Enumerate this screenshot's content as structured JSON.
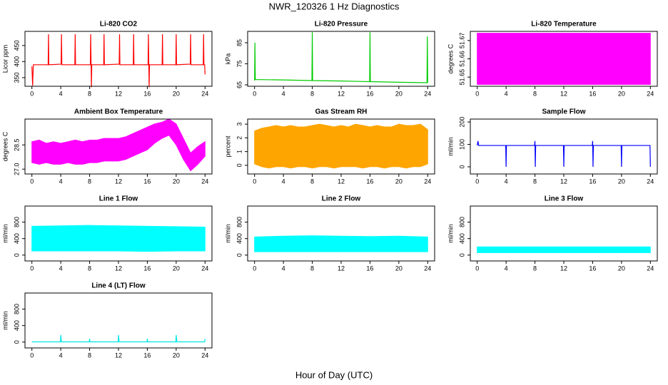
{
  "title": "NWR_120326  1 Hz Diagnostics",
  "xlabel": "Hour of Day (UTC)",
  "chart_data": [
    {
      "type": "line",
      "title": "Li-820 CO2",
      "ylabel": "Licor ppm",
      "color": "#ff0000",
      "x": [
        0,
        0.1,
        0.2,
        2.25,
        2.3,
        2.35,
        4.05,
        4.1,
        4.15,
        5.95,
        6.0,
        6.05,
        8.1,
        8.15,
        8.25,
        8.3,
        9.95,
        10,
        10.05,
        12.1,
        12.15,
        12.2,
        14.05,
        14.1,
        14.15,
        16.1,
        16.15,
        16.25,
        16.3,
        18.05,
        18.1,
        18.15,
        19.95,
        20,
        20.05,
        21.95,
        22,
        22.05,
        23.75,
        23.8,
        23.85,
        23.95,
        24
      ],
      "values": [
        385,
        325,
        390,
        390,
        485,
        390,
        392,
        485,
        390,
        390,
        485,
        390,
        390,
        485,
        320,
        390,
        390,
        485,
        390,
        392,
        485,
        390,
        390,
        485,
        390,
        390,
        485,
        320,
        390,
        390,
        485,
        390,
        390,
        485,
        390,
        392,
        485,
        390,
        390,
        485,
        390,
        390,
        360
      ],
      "xlim": [
        -0.96,
        24.96
      ],
      "xticks": [
        0,
        4,
        8,
        12,
        16,
        20,
        24
      ],
      "ylim": [
        323,
        494
      ],
      "yticks": [
        350,
        400,
        450
      ]
    },
    {
      "type": "line",
      "title": "Li-820 Pressure",
      "ylabel": "kPa",
      "color": "#00cc00",
      "x": [
        0,
        0.05,
        0.1,
        4,
        7.95,
        8,
        8.05,
        12,
        15.95,
        16,
        16.05,
        20,
        23.9,
        23.95,
        24
      ],
      "values": [
        67,
        85,
        67.5,
        67.3,
        67,
        90,
        67,
        66.8,
        66.5,
        90,
        66.5,
        66.2,
        66,
        88,
        66
      ],
      "xlim": [
        -0.96,
        24.96
      ],
      "xticks": [
        0,
        4,
        8,
        12,
        16,
        20,
        24
      ],
      "ylim": [
        64.3,
        90.4
      ],
      "yticks": [
        65,
        75,
        85
      ]
    },
    {
      "type": "band",
      "title": "Li-820 Temperature",
      "ylabel": "degrees C",
      "color": "#ff00ff",
      "x": [
        0,
        24
      ],
      "low": [
        51.646,
        51.646
      ],
      "high": [
        51.674,
        51.674
      ],
      "xlim": [
        -0.96,
        24.96
      ],
      "xticks": [
        0,
        4,
        8,
        12,
        16,
        20,
        24
      ],
      "ylim": [
        51.645,
        51.675
      ],
      "yticks": [
        51.65,
        51.66,
        51.67
      ]
    },
    {
      "type": "band",
      "title": "Ambient Box Temperature",
      "ylabel": "degrees C",
      "color": "#ff00ff",
      "x": [
        0,
        1,
        2,
        3,
        4,
        5,
        6,
        7,
        8,
        9,
        10,
        11,
        12,
        13,
        14,
        15,
        16,
        17,
        18,
        19,
        20,
        21,
        22,
        23,
        24
      ],
      "low": [
        27.4,
        27.3,
        27.4,
        27.3,
        27.3,
        27.4,
        27.3,
        27.3,
        27.4,
        27.4,
        27.5,
        27.5,
        27.5,
        27.6,
        27.8,
        28.0,
        28.2,
        28.6,
        28.9,
        29.1,
        28.5,
        27.6,
        26.9,
        27.3,
        27.8
      ],
      "high": [
        28.7,
        28.8,
        28.6,
        28.7,
        28.6,
        28.7,
        28.8,
        28.7,
        28.8,
        28.8,
        28.9,
        28.9,
        28.9,
        29.0,
        29.2,
        29.4,
        29.6,
        29.8,
        29.9,
        30.1,
        29.8,
        28.9,
        28.0,
        28.4,
        28.7
      ],
      "xlim": [
        -0.96,
        24.96
      ],
      "xticks": [
        0,
        4,
        8,
        12,
        16,
        20,
        24
      ],
      "ylim": [
        26.7,
        30.1
      ],
      "yticks": [
        {
          "value": 27,
          "label": "27.0"
        },
        {
          "value": 28.5,
          "label": "28.5"
        }
      ]
    },
    {
      "type": "band",
      "title": "Gas Stream RH",
      "ylabel": "percent",
      "color": "#ffa500",
      "x": [
        0,
        1,
        2,
        3,
        4,
        5,
        6,
        7,
        8,
        9,
        10,
        11,
        12,
        13,
        14,
        15,
        16,
        17,
        18,
        19,
        20,
        21,
        22,
        23,
        24
      ],
      "low": [
        0.1,
        -0.1,
        -0.2,
        -0.1,
        -0.1,
        -0.2,
        -0.1,
        -0.1,
        -0.2,
        -0.1,
        -0.1,
        -0.2,
        -0.1,
        -0.1,
        -0.1,
        -0.2,
        -0.1,
        -0.1,
        -0.2,
        -0.1,
        -0.1,
        -0.2,
        -0.1,
        -0.1,
        0.1
      ],
      "high": [
        2.5,
        2.7,
        2.8,
        2.9,
        2.8,
        2.9,
        2.8,
        2.8,
        2.9,
        3.0,
        2.9,
        2.8,
        2.9,
        2.8,
        3.0,
        2.9,
        2.8,
        2.9,
        2.8,
        2.8,
        3.0,
        2.9,
        2.9,
        3.0,
        2.6
      ],
      "xlim": [
        -0.96,
        24.96
      ],
      "xticks": [
        0,
        4,
        8,
        12,
        16,
        20,
        24
      ],
      "ylim": [
        -0.63,
        3.37
      ],
      "yticks": [
        0,
        1,
        2,
        3
      ]
    },
    {
      "type": "line",
      "title": "Sample Flow",
      "ylabel": "ml/min",
      "color": "#0000ff",
      "x": [
        0,
        0.1,
        0.2,
        3.95,
        4,
        4.05,
        7.95,
        8,
        8.05,
        8.1,
        11.95,
        12,
        12.05,
        15.95,
        16,
        16.05,
        16.1,
        19.95,
        20,
        20.05,
        23.95,
        24
      ],
      "values": [
        95,
        115,
        95,
        95,
        0,
        95,
        95,
        115,
        0,
        95,
        95,
        0,
        95,
        95,
        115,
        0,
        95,
        95,
        0,
        95,
        95,
        0
      ],
      "xlim": [
        -0.96,
        24.96
      ],
      "xticks": [
        0,
        4,
        8,
        12,
        16,
        20,
        24
      ],
      "ylim": [
        -32,
        213
      ],
      "yticks": [
        0,
        100,
        200
      ]
    },
    {
      "type": "band",
      "title": "Line 1 Flow",
      "ylabel": "ml/min",
      "color": "#00ffff",
      "x": [
        0,
        4,
        8,
        12,
        16,
        20,
        24
      ],
      "low": [
        100,
        100,
        100,
        100,
        90,
        100,
        100
      ],
      "high": [
        700,
        710,
        720,
        710,
        700,
        690,
        680
      ],
      "xlim": [
        -0.96,
        24.96
      ],
      "xticks": [
        0,
        4,
        8,
        12,
        16,
        20,
        24
      ],
      "ylim": [
        -142,
        1190
      ],
      "yticks": [
        0,
        400,
        800
      ]
    },
    {
      "type": "band",
      "title": "Line 2 Flow",
      "ylabel": "ml/min",
      "color": "#00ffff",
      "x": [
        0,
        4,
        8,
        12,
        16,
        20,
        24
      ],
      "low": [
        80,
        80,
        80,
        80,
        80,
        80,
        80
      ],
      "high": [
        440,
        460,
        470,
        460,
        450,
        460,
        440
      ],
      "xlim": [
        -0.96,
        24.96
      ],
      "xticks": [
        0,
        4,
        8,
        12,
        16,
        20,
        24
      ],
      "ylim": [
        -142,
        1190
      ],
      "yticks": [
        0,
        400,
        800
      ]
    },
    {
      "type": "band",
      "title": "Line 3 Flow",
      "ylabel": "ml/min",
      "color": "#00ffff",
      "x": [
        0,
        4,
        8,
        12,
        16,
        20,
        24
      ],
      "low": [
        60,
        60,
        60,
        60,
        60,
        60,
        60
      ],
      "high": [
        200,
        200,
        200,
        200,
        200,
        200,
        200
      ],
      "xlim": [
        -0.96,
        24.96
      ],
      "xticks": [
        0,
        4,
        8,
        12,
        16,
        20,
        24
      ],
      "ylim": [
        -142,
        1190
      ],
      "yticks": [
        0,
        400,
        800
      ]
    },
    {
      "type": "line",
      "title": "Line 4 (LT) Flow",
      "ylabel": "ml/min",
      "color": "#00e5e5",
      "x": [
        0,
        3.95,
        4,
        4.1,
        7.95,
        8,
        8.05,
        11.95,
        12,
        12.1,
        15.95,
        16,
        16.05,
        19.95,
        20,
        20.1,
        23.95,
        24
      ],
      "values": [
        5,
        5,
        170,
        5,
        5,
        80,
        5,
        5,
        170,
        5,
        5,
        80,
        5,
        5,
        170,
        5,
        5,
        80
      ],
      "xlim": [
        -0.96,
        24.96
      ],
      "xticks": [
        0,
        4,
        8,
        12,
        16,
        20,
        24
      ],
      "ylim": [
        -142,
        1190
      ],
      "yticks": [
        0,
        400,
        800
      ]
    }
  ]
}
